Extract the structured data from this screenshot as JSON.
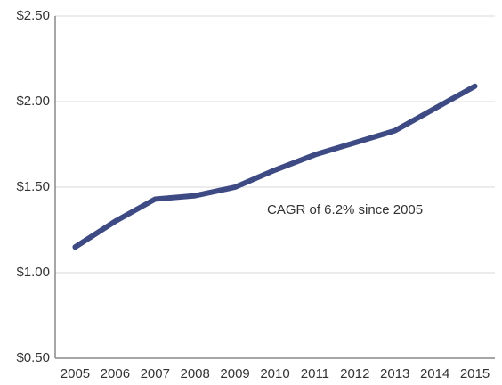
{
  "chart_data": {
    "type": "line",
    "categories": [
      "2005",
      "2006",
      "2007",
      "2008",
      "2009",
      "2010",
      "2011",
      "2012",
      "2013",
      "2014",
      "2015"
    ],
    "series": [
      {
        "name": null,
        "color": "#3d4a84",
        "values": [
          1.15,
          1.3,
          1.43,
          1.45,
          1.5,
          1.6,
          1.69,
          1.76,
          1.83,
          1.96,
          2.09
        ]
      }
    ],
    "ylim": [
      0.5,
      2.5
    ],
    "yticks": [
      {
        "value": 0.5,
        "label": "$0.50"
      },
      {
        "value": 1.0,
        "label": "$1.00"
      },
      {
        "value": 1.5,
        "label": "$1.50"
      },
      {
        "value": 2.0,
        "label": "$2.00"
      },
      {
        "value": 2.5,
        "label": "$2.50"
      }
    ],
    "grid": true,
    "annotations": [
      "CAGR of 6.2% since 2005"
    ]
  }
}
